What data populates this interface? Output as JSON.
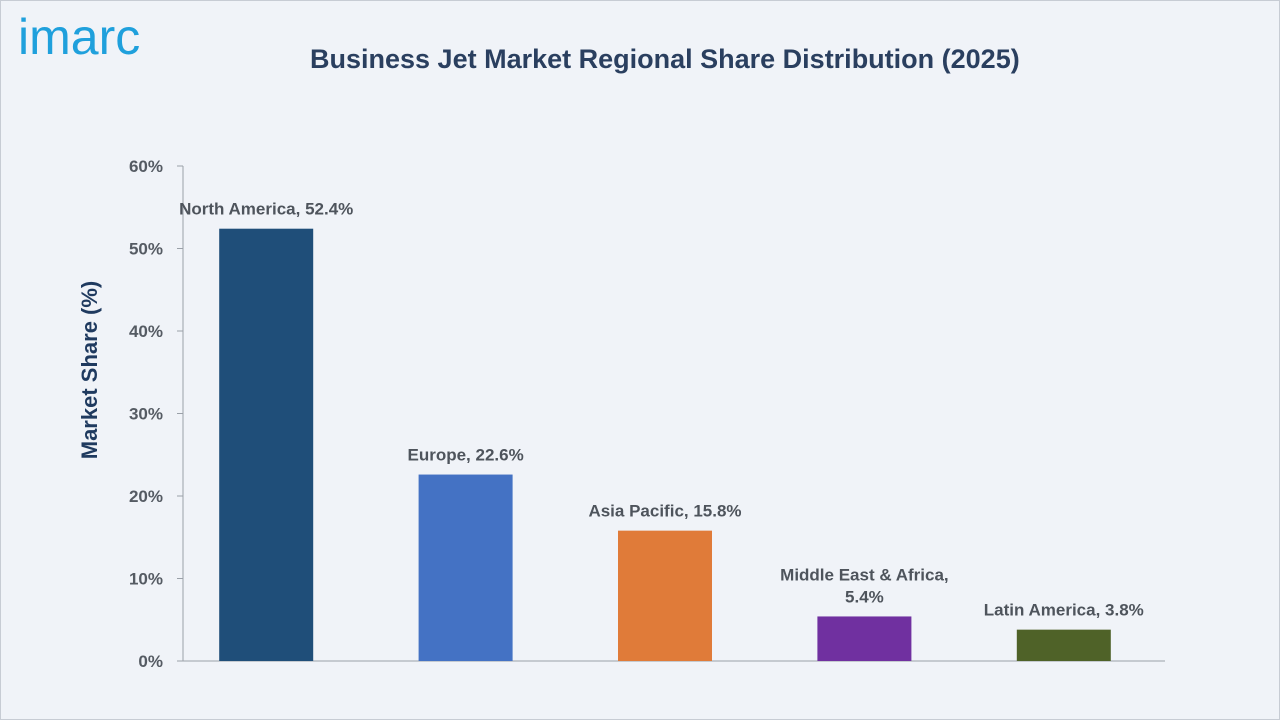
{
  "brand": {
    "logo_text": "imarc"
  },
  "chart_data": {
    "type": "bar",
    "title": "Business Jet Market Regional Share Distribution (2025)",
    "xlabel": "",
    "ylabel": "Market Share (%)",
    "ylim": [
      0,
      60
    ],
    "yticks": [
      "0%",
      "10%",
      "20%",
      "30%",
      "40%",
      "50%",
      "60%"
    ],
    "categories": [
      "North America",
      "Europe",
      "Asia Pacific",
      "Middle East & Africa",
      "Latin America"
    ],
    "values": [
      52.4,
      22.6,
      15.8,
      5.4,
      3.8
    ],
    "data_labels": [
      [
        "North America, 52.4%"
      ],
      [
        "Europe, 22.6%"
      ],
      [
        "Asia Pacific, 15.8%"
      ],
      [
        "Middle East & Africa,",
        "5.4%"
      ],
      [
        "Latin America, 3.8%"
      ]
    ],
    "colors": [
      "#1f4e79",
      "#4472c4",
      "#e07b39",
      "#7030a0",
      "#4f6228"
    ],
    "grid": false,
    "legend": "none"
  }
}
